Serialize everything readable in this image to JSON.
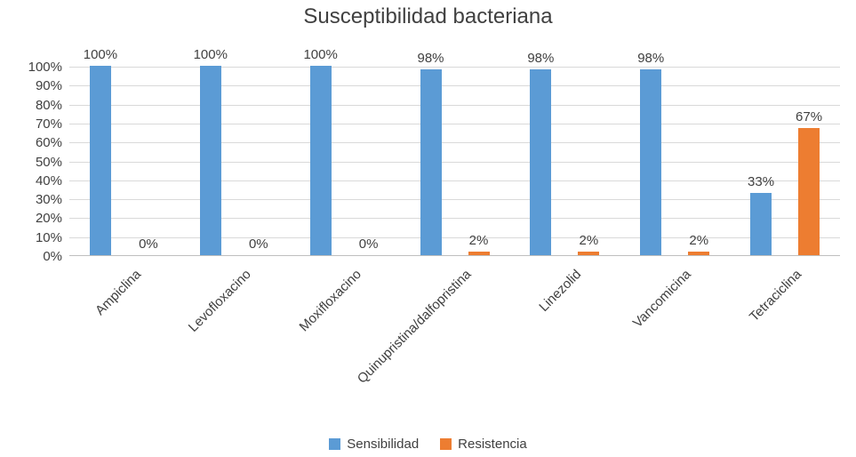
{
  "chart_data": {
    "type": "bar",
    "title": "Susceptibilidad bacteriana",
    "categories": [
      "Ampiclina",
      "Levofloxacino",
      "Moxifloxacino",
      "Quinupristina/dalfopristina",
      "Linezolid",
      "Vancomicina",
      "Tetraciclina"
    ],
    "series": [
      {
        "name": "Sensibilidad",
        "color": "#5B9BD5",
        "values": [
          100,
          100,
          100,
          98,
          98,
          98,
          33
        ]
      },
      {
        "name": "Resistencia",
        "color": "#ED7D31",
        "values": [
          0,
          0,
          0,
          2,
          2,
          2,
          67
        ]
      }
    ],
    "data_labels": [
      [
        "100%",
        "100%",
        "100%",
        "98%",
        "98%",
        "98%",
        "33%"
      ],
      [
        "0%",
        "0%",
        "0%",
        "2%",
        "2%",
        "2%",
        "67%"
      ]
    ],
    "y_ticks": [
      "100%",
      "90%",
      "80%",
      "70%",
      "60%",
      "50%",
      "40%",
      "30%",
      "20%",
      "10%",
      "0%"
    ],
    "ylim": [
      0,
      100
    ],
    "grid": true,
    "legend_position": "bottom"
  }
}
